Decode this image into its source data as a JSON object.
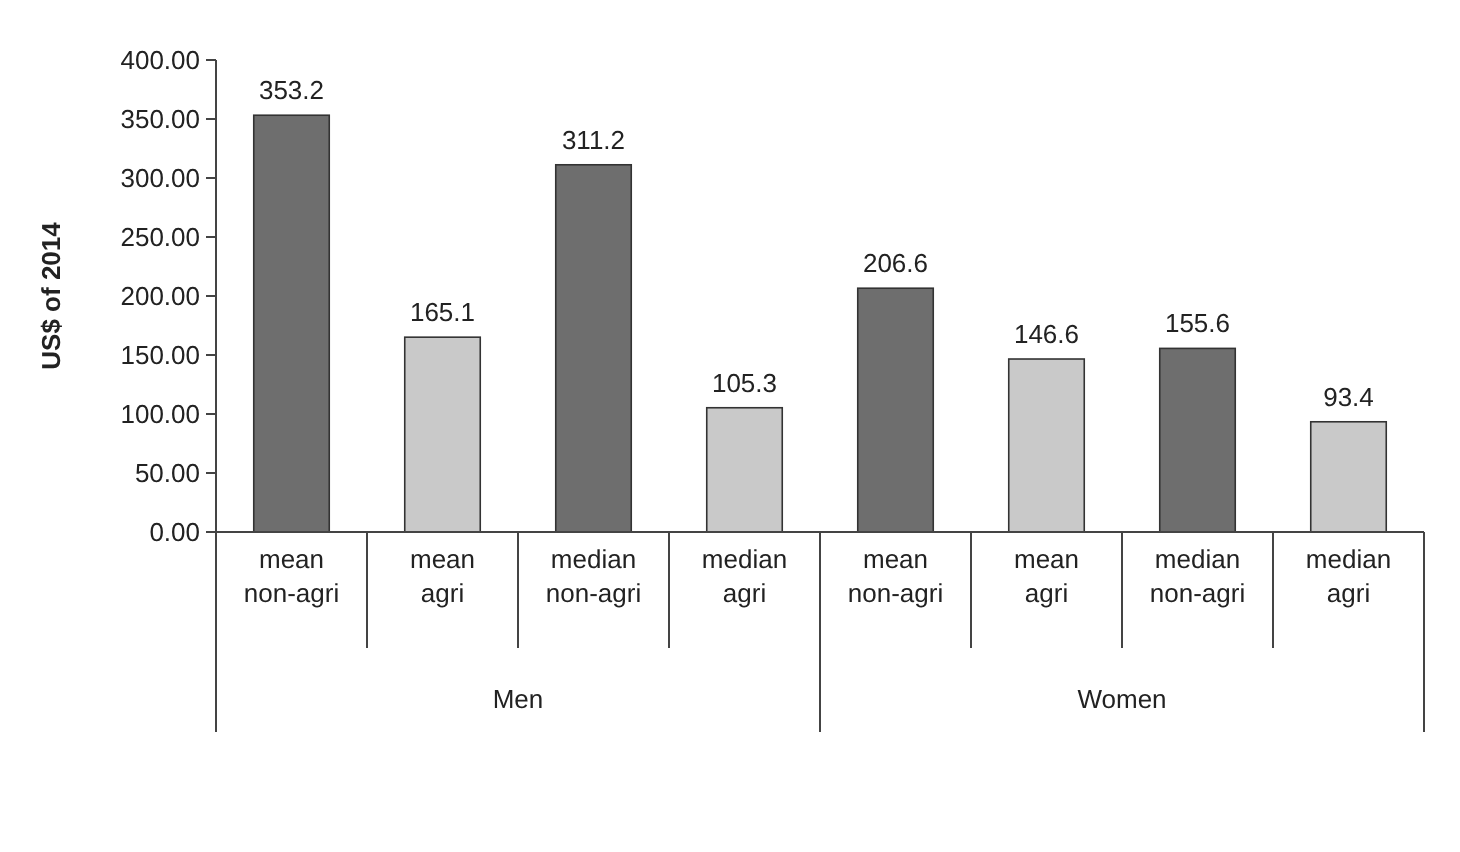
{
  "chart_data": {
    "type": "bar",
    "ylabel": "US$ of 2014",
    "categories": [
      "mean non-agri",
      "mean agri",
      "median non-agri",
      "median agri",
      "mean non-agri",
      "mean agri",
      "median non-agri",
      "median agri"
    ],
    "values": [
      353.2,
      165.1,
      311.2,
      105.3,
      206.6,
      146.6,
      155.6,
      93.4
    ],
    "colors": [
      "#6e6e6e",
      "#c9c9c9",
      "#6e6e6e",
      "#c9c9c9",
      "#6e6e6e",
      "#c9c9c9",
      "#6e6e6e",
      "#c9c9c9"
    ],
    "data_labels": true,
    "ylim": [
      0,
      400
    ],
    "yticks": [
      {
        "value": 0,
        "label": "0.00"
      },
      {
        "value": 50,
        "label": "50.00"
      },
      {
        "value": 100,
        "label": "100.00"
      },
      {
        "value": 150,
        "label": "150.00"
      },
      {
        "value": 200,
        "label": "200.00"
      },
      {
        "value": 250,
        "label": "250.00"
      },
      {
        "value": 300,
        "label": "300.00"
      },
      {
        "value": 350,
        "label": "350.00"
      },
      {
        "value": 400,
        "label": "400.00"
      }
    ],
    "annotations": [
      "Men",
      "Women"
    ],
    "grid": false
  }
}
